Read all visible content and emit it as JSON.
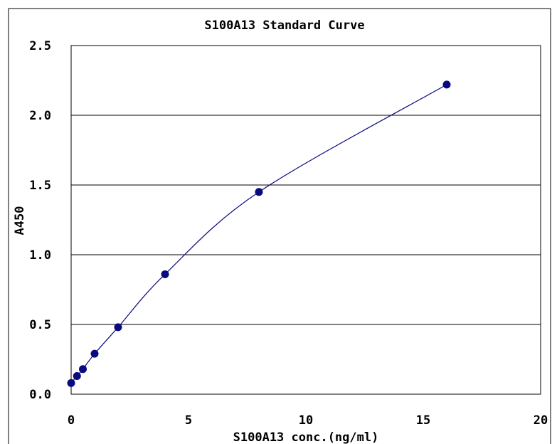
{
  "chart_data": {
    "type": "scatter",
    "title": "S100A13 Standard Curve",
    "xlabel": "S100A13 conc.(ng/ml)",
    "ylabel": "A450",
    "xlim": [
      0,
      20
    ],
    "ylim": [
      0,
      2.5
    ],
    "x_ticks": [
      "0",
      "5",
      "10",
      "15",
      "20"
    ],
    "y_ticks": [
      "0.0",
      "0.5",
      "1.0",
      "1.5",
      "2.0",
      "2.5"
    ],
    "grid": "horizontal",
    "series": [
      {
        "points": [
          {
            "x": 0,
            "y": 0.08
          },
          {
            "x": 0.25,
            "y": 0.13
          },
          {
            "x": 0.5,
            "y": 0.18
          },
          {
            "x": 1,
            "y": 0.29
          },
          {
            "x": 2,
            "y": 0.48
          },
          {
            "x": 4,
            "y": 0.86
          },
          {
            "x": 8,
            "y": 1.45
          },
          {
            "x": 16,
            "y": 2.22
          }
        ]
      }
    ],
    "colors": {
      "marker": "#0a0a80",
      "line": "#0a0a80",
      "grid": "#000000"
    }
  }
}
